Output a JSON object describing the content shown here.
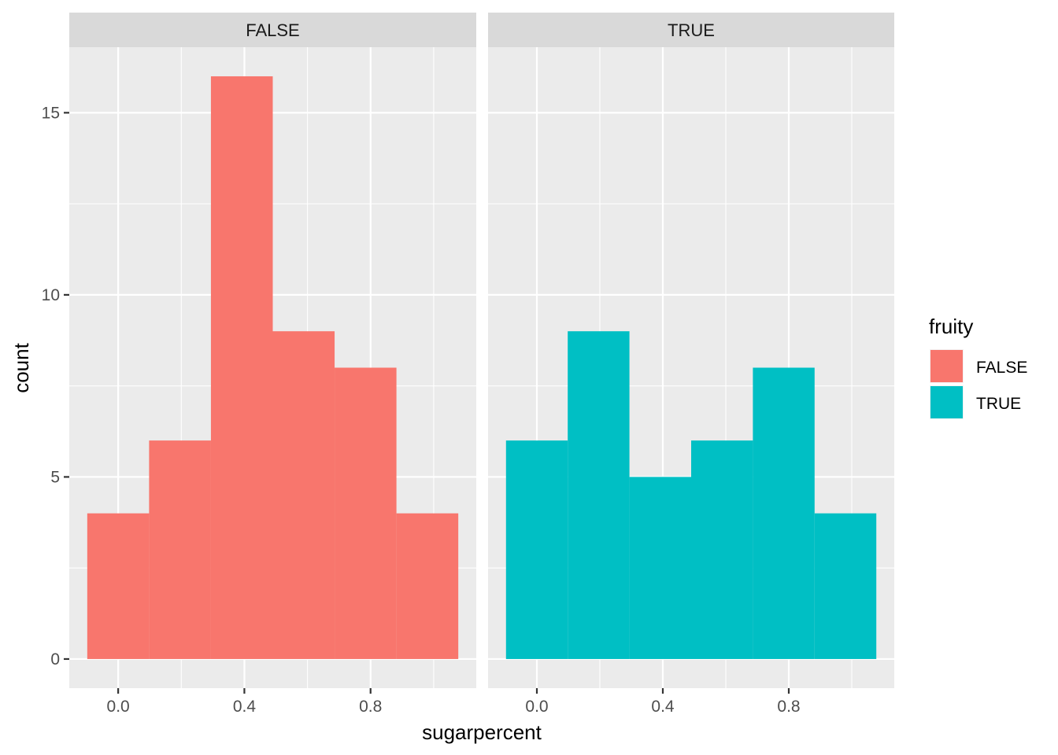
{
  "chart_data": {
    "type": "bar",
    "subtype": "faceted-histogram",
    "xlabel": "sugarpercent",
    "ylabel": "count",
    "x_ticks": [
      0.0,
      0.4,
      0.8
    ],
    "x_tick_labels": [
      "0.0",
      "0.4",
      "0.8"
    ],
    "y_ticks": [
      0,
      5,
      10,
      15
    ],
    "y_tick_labels": [
      "0",
      "5",
      "10",
      "15"
    ],
    "xlim": [
      -0.155,
      1.135
    ],
    "ylim": [
      -0.8,
      16.8
    ],
    "bin_edges": [
      -0.098,
      0.098,
      0.294,
      0.49,
      0.686,
      0.882,
      1.078
    ],
    "grid": true,
    "legend": {
      "title": "fruity",
      "placement": "right",
      "entries": [
        {
          "label": "FALSE",
          "color": "#F8766D"
        },
        {
          "label": "TRUE",
          "color": "#00BFC4"
        }
      ]
    },
    "facets": [
      {
        "label": "FALSE",
        "color": "#F8766D",
        "counts": [
          4,
          6,
          16,
          9,
          8,
          4
        ]
      },
      {
        "label": "TRUE",
        "color": "#00BFC4",
        "counts": [
          6,
          9,
          5,
          6,
          8,
          4
        ]
      }
    ]
  }
}
